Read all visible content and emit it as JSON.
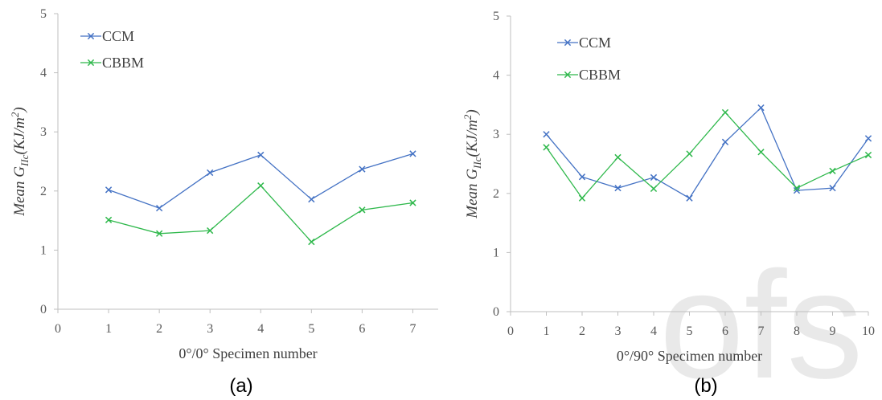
{
  "colors": {
    "ccm": "#4472c4",
    "cbbm": "#2eb84b",
    "axis": "#bfbfbf",
    "watermark": "#e9e9e9"
  },
  "watermark": {
    "text": "ofs"
  },
  "chart_data": [
    {
      "type": "line",
      "panel_label": "(a)",
      "xlabel": "0°/0° Specimen number",
      "ylabel_pre": "Mean G",
      "ylabel_sub": "IIc",
      "ylabel_post": "(KJ/m",
      "ylabel_sup": "2",
      "ylabel_end": ")",
      "x_ticks": [
        0,
        1,
        2,
        3,
        4,
        5,
        6,
        7
      ],
      "y_ticks": [
        0,
        1,
        2,
        3,
        4,
        5
      ],
      "xlim": [
        0,
        7.5
      ],
      "ylim": [
        0,
        5
      ],
      "legend_position": "top-left",
      "x": [
        1,
        2,
        3,
        4,
        5,
        6,
        7
      ],
      "series": [
        {
          "name": "CCM",
          "values": [
            2.02,
            1.71,
            2.31,
            2.61,
            1.86,
            2.37,
            2.63
          ]
        },
        {
          "name": "CBBM",
          "values": [
            1.51,
            1.28,
            1.33,
            2.09,
            1.14,
            1.68,
            1.8
          ]
        }
      ]
    },
    {
      "type": "line",
      "panel_label": "(b)",
      "xlabel": "0°/90° Specimen number",
      "ylabel_pre": "Mean G",
      "ylabel_sub": "IIc",
      "ylabel_post": "(KJ/m",
      "ylabel_sup": "2",
      "ylabel_end": ")",
      "x_ticks": [
        0,
        1,
        2,
        3,
        4,
        5,
        6,
        7,
        8,
        9,
        10
      ],
      "y_ticks": [
        0,
        1,
        2,
        3,
        4,
        5
      ],
      "xlim": [
        0,
        10
      ],
      "ylim": [
        0,
        5
      ],
      "legend_position": "top-left",
      "x": [
        1,
        2,
        3,
        4,
        5,
        6,
        7,
        8,
        9,
        10
      ],
      "series": [
        {
          "name": "CCM",
          "values": [
            3.0,
            2.28,
            2.09,
            2.27,
            1.92,
            2.87,
            3.45,
            2.05,
            2.09,
            2.93
          ]
        },
        {
          "name": "CBBM",
          "values": [
            2.78,
            1.92,
            2.61,
            2.08,
            2.67,
            3.37,
            2.7,
            2.09,
            2.38,
            2.65
          ]
        }
      ]
    }
  ]
}
